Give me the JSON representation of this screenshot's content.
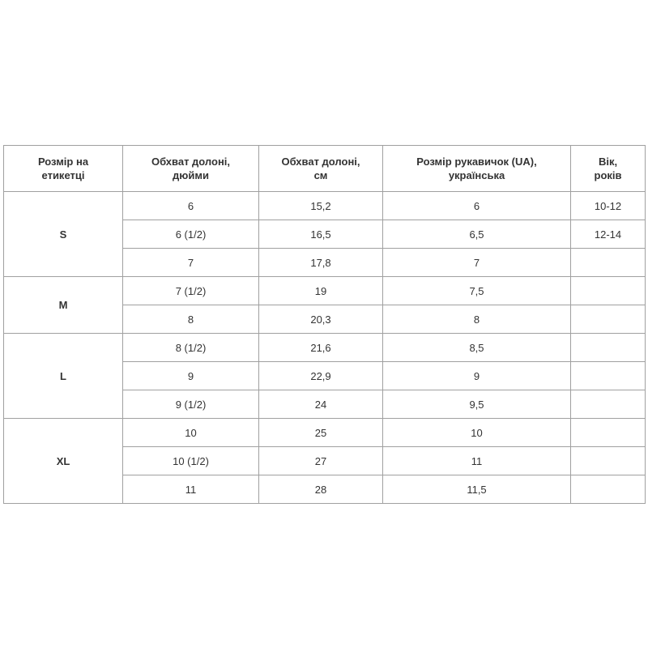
{
  "headers": [
    "Розмір на етикетці",
    "Обхват долоні, дюйми",
    "Обхват долоні, см",
    "Розмір рукавичок (UA), українська",
    "Вік, років"
  ],
  "header_lines": [
    [
      "Розмір на",
      "етикетці"
    ],
    [
      "Обхват долоні,",
      "дюйми"
    ],
    [
      "Обхват долоні,",
      "см"
    ],
    [
      "Розмір рукавичок (UA),",
      "українська"
    ],
    [
      "Вік,",
      "років"
    ]
  ],
  "groups": [
    {
      "size": "S",
      "rows": [
        [
          "6",
          "15,2",
          "6",
          "10-12"
        ],
        [
          "6 (1/2)",
          "16,5",
          "6,5",
          "12-14"
        ],
        [
          "7",
          "17,8",
          "7",
          ""
        ]
      ]
    },
    {
      "size": "M",
      "rows": [
        [
          "7 (1/2)",
          "19",
          "7,5",
          ""
        ],
        [
          "8",
          "20,3",
          "8",
          ""
        ]
      ]
    },
    {
      "size": "L",
      "rows": [
        [
          "8 (1/2)",
          "21,6",
          "8,5",
          ""
        ],
        [
          "9",
          "22,9",
          "9",
          ""
        ],
        [
          "9 (1/2)",
          "24",
          "9,5",
          ""
        ]
      ]
    },
    {
      "size": "XL",
      "rows": [
        [
          "10",
          "25",
          "10",
          ""
        ],
        [
          "10 (1/2)",
          "27",
          "11",
          ""
        ],
        [
          "11",
          "28",
          "11,5",
          ""
        ]
      ]
    }
  ]
}
